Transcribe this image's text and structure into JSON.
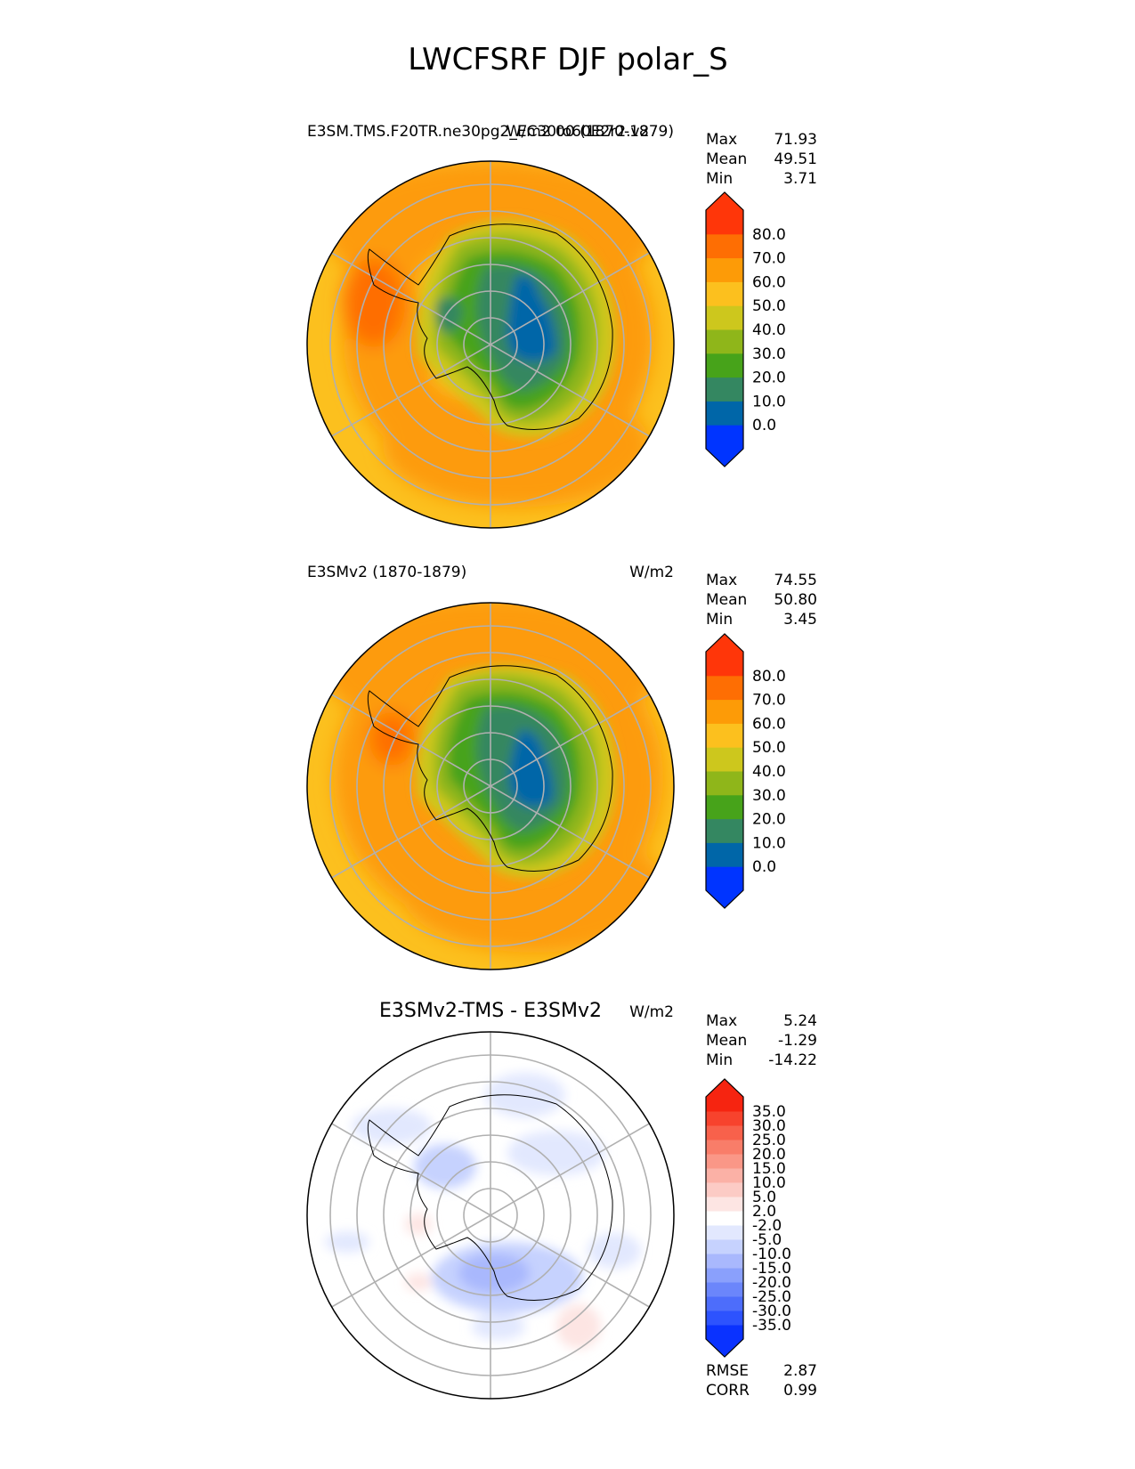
{
  "figure": {
    "title": "LWCFSRF DJF polar_S"
  },
  "colors": {
    "main_levels": [
      "#0034ff",
      "#0066a8",
      "#348761",
      "#47a31a",
      "#8fb61a",
      "#cdc71d",
      "#fcc01e",
      "#fd9b07",
      "#fe6e03",
      "#ff3609"
    ],
    "main_ticks": [
      "0.0",
      "10.0",
      "20.0",
      "30.0",
      "40.0",
      "50.0",
      "60.0",
      "70.0",
      "80.0"
    ],
    "diff_levels": [
      "#0a32ff",
      "#2d53fe",
      "#4d6dfb",
      "#6b86fb",
      "#8aa0fc",
      "#a9b8fd",
      "#c6d2fe",
      "#e2e8fe",
      "#ffffff",
      "#fde5e3",
      "#fccbc5",
      "#fbb1a6",
      "#fa9787",
      "#f97d69",
      "#f8614b",
      "#f7432d",
      "#f62410",
      "#ff3609"
    ],
    "diff_ticks": [
      "-35.0",
      "-30.0",
      "-25.0",
      "-20.0",
      "-15.0",
      "-10.0",
      "-5.0",
      "-2.0",
      "2.0",
      "5.0",
      "10.0",
      "15.0",
      "20.0",
      "25.0",
      "30.0",
      "35.0"
    ],
    "grid": "#b0b0b0",
    "coast": "#000000"
  },
  "panels": [
    {
      "id": "test",
      "left_title": "E3SM.TMS.F20TR.ne30pg2_EC30to60E2r2.v2",
      "center_title": "",
      "right_title": "W/m2 00 (1870-1879)",
      "stats": [
        {
          "label": "Max",
          "value": "71.93"
        },
        {
          "label": "Mean",
          "value": "49.51"
        },
        {
          "label": "Min",
          "value": "3.71"
        }
      ]
    },
    {
      "id": "ref",
      "left_title": "E3SMv2 (1870-1879)",
      "center_title": "",
      "right_title": "W/m2",
      "stats": [
        {
          "label": "Max",
          "value": "74.55"
        },
        {
          "label": "Mean",
          "value": "50.80"
        },
        {
          "label": "Min",
          "value": "3.45"
        }
      ]
    },
    {
      "id": "diff",
      "left_title": "",
      "center_title": "E3SMv2-TMS - E3SMv2",
      "right_title": "W/m2",
      "stats": [
        {
          "label": "Max",
          "value": "5.24"
        },
        {
          "label": "Mean",
          "value": "-1.29"
        },
        {
          "label": "Min",
          "value": "-14.22"
        }
      ],
      "extra_stats": [
        {
          "label": "RMSE",
          "value": "2.87"
        },
        {
          "label": "CORR",
          "value": "0.99"
        }
      ]
    }
  ],
  "chart_data": [
    {
      "type": "heatmap",
      "projection": "south polar stereographic",
      "title": "E3SM.TMS.F20TR.ne30pg2_EC30to60E2r2.v2",
      "units": "W/m2",
      "colorbar_ticks": [
        0,
        10,
        20,
        30,
        40,
        50,
        60,
        70,
        80
      ],
      "stats": {
        "max": 71.93,
        "mean": 49.51,
        "min": 3.71
      }
    },
    {
      "type": "heatmap",
      "projection": "south polar stereographic",
      "title": "E3SMv2 (1870-1879)",
      "units": "W/m2",
      "colorbar_ticks": [
        0,
        10,
        20,
        30,
        40,
        50,
        60,
        70,
        80
      ],
      "stats": {
        "max": 74.55,
        "mean": 50.8,
        "min": 3.45
      }
    },
    {
      "type": "heatmap",
      "projection": "south polar stereographic",
      "title": "E3SMv2-TMS - E3SMv2",
      "units": "W/m2",
      "colorbar_ticks": [
        -35,
        -30,
        -25,
        -20,
        -15,
        -10,
        -5,
        -2,
        2,
        5,
        10,
        15,
        20,
        25,
        30,
        35
      ],
      "stats": {
        "max": 5.24,
        "mean": -1.29,
        "min": -14.22,
        "rmse": 2.87,
        "corr": 0.99
      }
    }
  ]
}
